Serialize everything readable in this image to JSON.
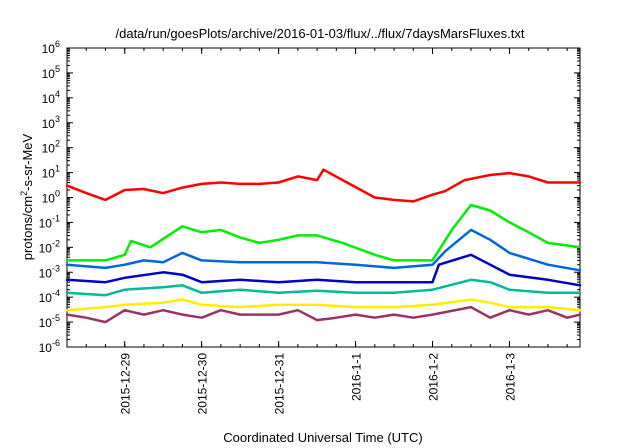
{
  "chart_data": {
    "type": "line",
    "title": "/data/run/goesPlots/archive/2016-01-03/flux/../flux/7daysMarsFluxes.txt",
    "xlabel": "Coordinated Universal Time (UTC)",
    "ylabel": "protons/cm2-s-sr-MeV",
    "ylabel_parts": {
      "base": "protons/cm",
      "sup": "2",
      "rest": "-s-sr-MeV"
    },
    "y_scale": "log",
    "ylim_exponents": [
      -6,
      6
    ],
    "y_tick_exponents": [
      -6,
      -5,
      -4,
      -3,
      -2,
      -1,
      0,
      1,
      2,
      3,
      4,
      5,
      6
    ],
    "y_tick_base": "10",
    "xlim": [
      "2015-12-28 06:00",
      "2016-01-03 22:00"
    ],
    "x_ticks": [
      {
        "t": "2015-12-29 00:00",
        "label": "2015-12-29"
      },
      {
        "t": "2015-12-30 00:00",
        "label": "2015-12-30"
      },
      {
        "t": "2015-12-31 00:00",
        "label": "2015-12-31"
      },
      {
        "t": "2016-01-01 00:00",
        "label": "2016-1-1"
      },
      {
        "t": "2016-01-02 00:00",
        "label": "2016-1-2"
      },
      {
        "t": "2016-01-03 00:00",
        "label": "2016-1-3"
      }
    ],
    "grid": false,
    "legend": "none",
    "series": [
      {
        "color": "#ff0000",
        "points": [
          [
            "2015-12-28 06:00",
            3.0
          ],
          [
            "2015-12-28 12:00",
            1.5
          ],
          [
            "2015-12-28 18:00",
            0.8
          ],
          [
            "2015-12-29 00:00",
            2.0
          ],
          [
            "2015-12-29 06:00",
            2.2
          ],
          [
            "2015-12-29 12:00",
            1.5
          ],
          [
            "2015-12-29 18:00",
            2.5
          ],
          [
            "2015-12-30 00:00",
            3.5
          ],
          [
            "2015-12-30 06:00",
            4.0
          ],
          [
            "2015-12-30 12:00",
            3.5
          ],
          [
            "2015-12-30 18:00",
            3.5
          ],
          [
            "2015-12-31 00:00",
            4.0
          ],
          [
            "2015-12-31 06:00",
            7.0
          ],
          [
            "2015-12-31 12:00",
            5.0
          ],
          [
            "2015-12-31 14:00",
            13.0
          ],
          [
            "2015-12-31 20:00",
            5.0
          ],
          [
            "2016-01-01 06:00",
            1.0
          ],
          [
            "2016-01-01 12:00",
            0.8
          ],
          [
            "2016-01-01 18:00",
            0.7
          ],
          [
            "2016-01-02 00:00",
            1.3
          ],
          [
            "2016-01-02 04:00",
            1.8
          ],
          [
            "2016-01-02 10:00",
            5.0
          ],
          [
            "2016-01-02 18:00",
            8.0
          ],
          [
            "2016-01-03 00:00",
            9.5
          ],
          [
            "2016-01-03 06:00",
            7.0
          ],
          [
            "2016-01-03 12:00",
            4.0
          ],
          [
            "2016-01-03 22:00",
            4.0
          ]
        ]
      },
      {
        "color": "#00ee00",
        "points": [
          [
            "2015-12-28 06:00",
            0.003
          ],
          [
            "2015-12-28 18:00",
            0.003
          ],
          [
            "2015-12-29 00:00",
            0.005
          ],
          [
            "2015-12-29 02:00",
            0.018
          ],
          [
            "2015-12-29 08:00",
            0.01
          ],
          [
            "2015-12-29 18:00",
            0.07
          ],
          [
            "2015-12-30 00:00",
            0.04
          ],
          [
            "2015-12-30 06:00",
            0.05
          ],
          [
            "2015-12-30 12:00",
            0.025
          ],
          [
            "2015-12-30 18:00",
            0.015
          ],
          [
            "2015-12-31 00:00",
            0.02
          ],
          [
            "2015-12-31 06:00",
            0.03
          ],
          [
            "2015-12-31 12:00",
            0.03
          ],
          [
            "2015-12-31 20:00",
            0.015
          ],
          [
            "2016-01-01 06:00",
            0.005
          ],
          [
            "2016-01-01 12:00",
            0.003
          ],
          [
            "2016-01-01 18:00",
            0.003
          ],
          [
            "2016-01-02 00:00",
            0.003
          ],
          [
            "2016-01-02 06:00",
            0.05
          ],
          [
            "2016-01-02 12:00",
            0.5
          ],
          [
            "2016-01-02 18:00",
            0.3
          ],
          [
            "2016-01-03 00:00",
            0.1
          ],
          [
            "2016-01-03 06:00",
            0.04
          ],
          [
            "2016-01-03 12:00",
            0.015
          ],
          [
            "2016-01-03 22:00",
            0.01
          ]
        ]
      },
      {
        "color": "#0066dd",
        "points": [
          [
            "2015-12-28 06:00",
            0.002
          ],
          [
            "2015-12-28 18:00",
            0.0015
          ],
          [
            "2015-12-29 00:00",
            0.002
          ],
          [
            "2015-12-29 06:00",
            0.003
          ],
          [
            "2015-12-29 12:00",
            0.0025
          ],
          [
            "2015-12-29 18:00",
            0.006
          ],
          [
            "2015-12-30 00:00",
            0.003
          ],
          [
            "2015-12-30 12:00",
            0.0025
          ],
          [
            "2015-12-31 00:00",
            0.0025
          ],
          [
            "2015-12-31 12:00",
            0.0025
          ],
          [
            "2016-01-01 00:00",
            0.002
          ],
          [
            "2016-01-01 12:00",
            0.0015
          ],
          [
            "2016-01-02 00:00",
            0.002
          ],
          [
            "2016-01-02 04:00",
            0.007
          ],
          [
            "2016-01-02 12:00",
            0.05
          ],
          [
            "2016-01-02 18:00",
            0.02
          ],
          [
            "2016-01-03 00:00",
            0.006
          ],
          [
            "2016-01-03 12:00",
            0.002
          ],
          [
            "2016-01-03 22:00",
            0.0012
          ]
        ]
      },
      {
        "color": "#0000cc",
        "points": [
          [
            "2015-12-28 06:00",
            0.0005
          ],
          [
            "2015-12-28 18:00",
            0.0004
          ],
          [
            "2015-12-29 00:00",
            0.0006
          ],
          [
            "2015-12-29 12:00",
            0.001
          ],
          [
            "2015-12-29 18:00",
            0.0008
          ],
          [
            "2015-12-30 00:00",
            0.0004
          ],
          [
            "2015-12-30 12:00",
            0.0005
          ],
          [
            "2015-12-31 00:00",
            0.0004
          ],
          [
            "2015-12-31 12:00",
            0.0005
          ],
          [
            "2016-01-01 00:00",
            0.0004
          ],
          [
            "2016-01-01 12:00",
            0.0004
          ],
          [
            "2016-01-02 00:00",
            0.0004
          ],
          [
            "2016-01-02 02:00",
            0.002
          ],
          [
            "2016-01-02 12:00",
            0.005
          ],
          [
            "2016-01-02 18:00",
            0.002
          ],
          [
            "2016-01-03 00:00",
            0.0008
          ],
          [
            "2016-01-03 12:00",
            0.0005
          ],
          [
            "2016-01-03 22:00",
            0.0003
          ]
        ]
      },
      {
        "color": "#00bb99",
        "points": [
          [
            "2015-12-28 06:00",
            0.00015
          ],
          [
            "2015-12-28 18:00",
            0.00012
          ],
          [
            "2015-12-29 00:00",
            0.0002
          ],
          [
            "2015-12-29 12:00",
            0.00025
          ],
          [
            "2015-12-29 18:00",
            0.0003
          ],
          [
            "2015-12-30 00:00",
            0.00015
          ],
          [
            "2015-12-30 12:00",
            0.0002
          ],
          [
            "2015-12-31 00:00",
            0.00015
          ],
          [
            "2015-12-31 12:00",
            0.00018
          ],
          [
            "2016-01-01 00:00",
            0.00015
          ],
          [
            "2016-01-01 12:00",
            0.00015
          ],
          [
            "2016-01-02 00:00",
            0.0002
          ],
          [
            "2016-01-02 12:00",
            0.0005
          ],
          [
            "2016-01-02 18:00",
            0.0004
          ],
          [
            "2016-01-03 00:00",
            0.0002
          ],
          [
            "2016-01-03 12:00",
            0.00015
          ],
          [
            "2016-01-03 22:00",
            0.00015
          ]
        ]
      },
      {
        "color": "#ffee00",
        "points": [
          [
            "2015-12-28 06:00",
            3e-05
          ],
          [
            "2015-12-28 18:00",
            4e-05
          ],
          [
            "2015-12-29 00:00",
            5e-05
          ],
          [
            "2015-12-29 12:00",
            6e-05
          ],
          [
            "2015-12-29 18:00",
            8e-05
          ],
          [
            "2015-12-30 00:00",
            5e-05
          ],
          [
            "2015-12-30 12:00",
            4e-05
          ],
          [
            "2015-12-31 00:00",
            5e-05
          ],
          [
            "2015-12-31 12:00",
            5e-05
          ],
          [
            "2016-01-01 00:00",
            4e-05
          ],
          [
            "2016-01-01 12:00",
            4e-05
          ],
          [
            "2016-01-02 00:00",
            5e-05
          ],
          [
            "2016-01-02 12:00",
            8e-05
          ],
          [
            "2016-01-02 18:00",
            6e-05
          ],
          [
            "2016-01-03 00:00",
            4e-05
          ],
          [
            "2016-01-03 12:00",
            4e-05
          ],
          [
            "2016-01-03 22:00",
            3e-05
          ]
        ]
      },
      {
        "color": "#993366",
        "points": [
          [
            "2015-12-28 06:00",
            2e-05
          ],
          [
            "2015-12-28 12:00",
            1.5e-05
          ],
          [
            "2015-12-28 18:00",
            1e-05
          ],
          [
            "2015-12-29 00:00",
            3e-05
          ],
          [
            "2015-12-29 06:00",
            2e-05
          ],
          [
            "2015-12-29 12:00",
            3e-05
          ],
          [
            "2015-12-29 18:00",
            2e-05
          ],
          [
            "2015-12-30 00:00",
            1.5e-05
          ],
          [
            "2015-12-30 06:00",
            3e-05
          ],
          [
            "2015-12-30 12:00",
            2e-05
          ],
          [
            "2015-12-30 18:00",
            2e-05
          ],
          [
            "2015-12-31 00:00",
            2e-05
          ],
          [
            "2015-12-31 06:00",
            3e-05
          ],
          [
            "2015-12-31 12:00",
            1.2e-05
          ],
          [
            "2015-12-31 18:00",
            1.5e-05
          ],
          [
            "2016-01-01 00:00",
            2e-05
          ],
          [
            "2016-01-01 06:00",
            1.5e-05
          ],
          [
            "2016-01-01 12:00",
            2e-05
          ],
          [
            "2016-01-01 18:00",
            1.5e-05
          ],
          [
            "2016-01-02 00:00",
            2e-05
          ],
          [
            "2016-01-02 12:00",
            4e-05
          ],
          [
            "2016-01-02 18:00",
            1.5e-05
          ],
          [
            "2016-01-03 00:00",
            3e-05
          ],
          [
            "2016-01-03 06:00",
            2e-05
          ],
          [
            "2016-01-03 12:00",
            3e-05
          ],
          [
            "2016-01-03 18:00",
            1.5e-05
          ],
          [
            "2016-01-03 22:00",
            2e-05
          ]
        ]
      }
    ]
  }
}
